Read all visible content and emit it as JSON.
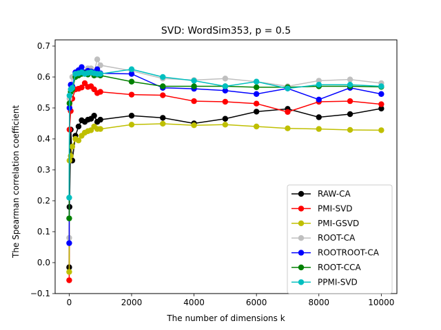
{
  "chart_data": {
    "type": "line",
    "title": "SVD: WordSim353, p = 0.5",
    "xlabel": "The number of dimensions k",
    "ylabel": "The Spearman correlation coefficient",
    "xlim": [
      -450,
      10500
    ],
    "ylim": [
      -0.1,
      0.72
    ],
    "xticks": [
      0,
      2000,
      4000,
      6000,
      8000,
      10000
    ],
    "xtick_labels": [
      "0",
      "2000",
      "4000",
      "6000",
      "8000",
      "10000"
    ],
    "yticks": [
      -0.1,
      0.0,
      0.1,
      0.2,
      0.3,
      0.4,
      0.5,
      0.6,
      0.7
    ],
    "ytick_labels": [
      "−0.1",
      "0.0",
      "0.1",
      "0.2",
      "0.3",
      "0.4",
      "0.5",
      "0.6",
      "0.7"
    ],
    "legend_position": "lower-right",
    "x": [
      1,
      10,
      50,
      100,
      200,
      300,
      400,
      500,
      600,
      700,
      800,
      900,
      1000,
      2000,
      3000,
      4000,
      5000,
      6000,
      7000,
      8000,
      9000,
      10000
    ],
    "series": [
      {
        "name": "RAW-CA",
        "color": "#000000",
        "values": [
          -0.015,
          0.18,
          0.43,
          0.33,
          0.41,
          0.44,
          0.46,
          0.455,
          0.462,
          0.465,
          0.475,
          0.455,
          0.462,
          0.475,
          0.468,
          0.45,
          0.465,
          0.488,
          0.497,
          0.47,
          0.48,
          0.498
        ]
      },
      {
        "name": "PMI-SVD",
        "color": "#ff0000",
        "values": [
          -0.057,
          0.43,
          0.49,
          0.53,
          0.56,
          0.562,
          0.566,
          0.58,
          0.568,
          0.57,
          0.56,
          0.548,
          0.552,
          0.543,
          0.541,
          0.522,
          0.52,
          0.514,
          0.487,
          0.52,
          0.522,
          0.512
        ]
      },
      {
        "name": "PMI-GSVD",
        "color": "#bfbf00",
        "values": [
          -0.03,
          0.33,
          0.345,
          0.375,
          0.4,
          0.395,
          0.41,
          0.42,
          0.425,
          0.428,
          0.44,
          0.432,
          0.432,
          0.446,
          0.449,
          0.444,
          0.446,
          0.44,
          0.434,
          0.432,
          0.429,
          0.428
        ]
      },
      {
        "name": "ROOT-CA",
        "color": "#bfbfbf",
        "values": [
          0.08,
          0.53,
          0.55,
          0.6,
          0.61,
          0.605,
          0.62,
          0.61,
          0.628,
          0.628,
          0.615,
          0.657,
          0.638,
          0.62,
          0.595,
          0.59,
          0.595,
          0.585,
          0.57,
          0.588,
          0.592,
          0.58
        ]
      },
      {
        "name": "ROOTROOT-CA",
        "color": "#0000ff",
        "values": [
          0.063,
          0.5,
          0.575,
          0.57,
          0.615,
          0.622,
          0.632,
          0.615,
          0.62,
          0.618,
          0.615,
          0.625,
          0.612,
          0.61,
          0.565,
          0.562,
          0.556,
          0.545,
          0.563,
          0.527,
          0.565,
          0.545
        ]
      },
      {
        "name": "ROOT-CCA",
        "color": "#008000",
        "values": [
          0.143,
          0.515,
          0.552,
          0.56,
          0.6,
          0.605,
          0.61,
          0.612,
          0.608,
          0.615,
          0.605,
          0.608,
          0.605,
          0.585,
          0.57,
          0.57,
          0.57,
          0.567,
          0.567,
          0.57,
          0.57,
          0.568
        ]
      },
      {
        "name": "PPMI-SVD",
        "color": "#00bfbf",
        "values": [
          0.21,
          0.54,
          0.56,
          0.565,
          0.61,
          0.612,
          0.615,
          0.61,
          0.613,
          0.615,
          0.612,
          0.61,
          0.61,
          0.625,
          0.6,
          0.588,
          0.57,
          0.585,
          0.563,
          0.575,
          0.575,
          0.57
        ]
      }
    ]
  }
}
